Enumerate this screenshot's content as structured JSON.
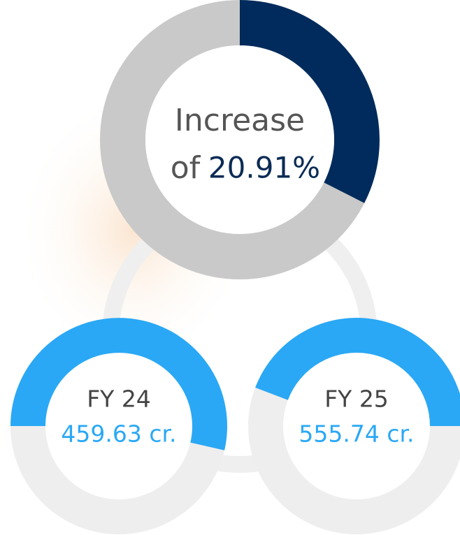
{
  "summary": {
    "line1": "Increase",
    "prefix": "of",
    "value": "20.91%"
  },
  "items": [
    {
      "label": "FY 24",
      "value": "459.63 cr."
    },
    {
      "label": "FY 25",
      "value": "555.74 cr."
    }
  ]
}
